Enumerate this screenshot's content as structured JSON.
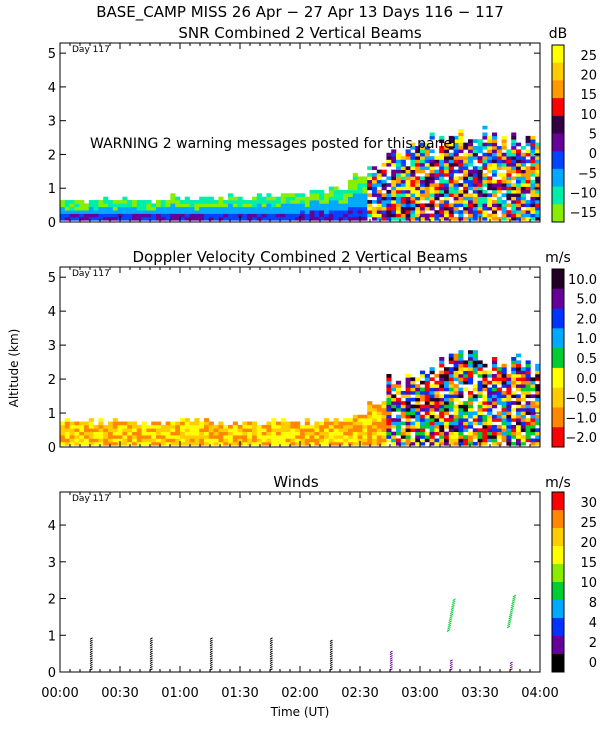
{
  "header": {
    "title": "BASE_CAMP MISS  26 Apr − 27 Apr 13 Days 116 − 117"
  },
  "warning_text": "WARNING  2 warning messages posted for this panel",
  "x_axis": {
    "label": "Time (UT)",
    "ticks": [
      "00:00",
      "00:30",
      "01:00",
      "01:30",
      "02:00",
      "02:30",
      "03:00",
      "03:30",
      "04:00"
    ],
    "range_hours": [
      0,
      4
    ]
  },
  "y_axis": {
    "label": "Altitude (km)"
  },
  "chart_data": [
    {
      "type": "heatmap",
      "title": "SNR Combined 2 Vertical Beams",
      "day_label": "Day 117",
      "units": "dB",
      "ylim": [
        0,
        5.3
      ],
      "y_ticks": [
        "0",
        "1",
        "2",
        "3",
        "4",
        "5"
      ],
      "y_tick_values": [
        0,
        1,
        2,
        3,
        4,
        5
      ],
      "colorbar_labels": [
        "25",
        "20",
        "15",
        "10",
        "5",
        "0",
        "−5",
        "−10",
        "−15"
      ],
      "colorbar_colors": [
        "#ffff00",
        "#ffcc00",
        "#ff9900",
        "#ff0000",
        "#330044",
        "#660099",
        "#0044ff",
        "#00aaff",
        "#00eeaa",
        "#88ee00"
      ],
      "echo_top_km": [
        0.6,
        0.6,
        0.65,
        0.65,
        0.6,
        0.7,
        0.7,
        0.65,
        0.7,
        0.7,
        0.75,
        0.8,
        0.8,
        0.85,
        0.95,
        1.3,
        1.8,
        2.0,
        2.2,
        2.4,
        2.6,
        2.7,
        2.6,
        2.5,
        2.4
      ]
    },
    {
      "type": "heatmap",
      "title": "Doppler Velocity Combined 2 Vertical Beams",
      "day_label": "Day 117",
      "units": "m/s",
      "ylim": [
        0,
        5.3
      ],
      "y_ticks": [
        "0",
        "1",
        "2",
        "3",
        "4",
        "5"
      ],
      "y_tick_values": [
        0,
        1,
        2,
        3,
        4,
        5
      ],
      "colorbar_labels": [
        "10.0",
        "5.0",
        "2.0",
        "1.0",
        "0.5",
        "0.0",
        "−0.5",
        "−1.0",
        "−2.0"
      ],
      "colorbar_colors": [
        "#220022",
        "#660099",
        "#0033ff",
        "#00aaff",
        "#00cc33",
        "#ffff00",
        "#ffcc00",
        "#ff8800",
        "#ff0000"
      ],
      "echo_top_km": [
        0.7,
        0.7,
        0.75,
        0.7,
        0.65,
        0.7,
        0.7,
        0.75,
        0.7,
        0.7,
        0.7,
        0.75,
        0.7,
        0.7,
        0.75,
        0.9,
        1.4,
        1.9,
        2.2,
        2.4,
        2.6,
        2.7,
        2.6,
        2.5,
        2.3
      ]
    },
    {
      "type": "scatter",
      "title": "Winds",
      "day_label": "Day 117",
      "units": "m/s",
      "ylim": [
        0,
        4.9
      ],
      "y_ticks": [
        "0",
        "1",
        "2",
        "3",
        "4"
      ],
      "y_tick_values": [
        0,
        1,
        2,
        3,
        4
      ],
      "colorbar_labels": [
        "30",
        "25",
        "20",
        "15",
        "10",
        "8",
        "4",
        "2",
        "0"
      ],
      "colorbar_colors": [
        "#ff0000",
        "#ff8800",
        "#ffcc00",
        "#ffff00",
        "#88ee00",
        "#00cc33",
        "#00aaff",
        "#0033ff",
        "#660099",
        "#000000"
      ],
      "profile_times_h": [
        0.25,
        0.75,
        1.25,
        1.75,
        2.25,
        2.75,
        3.25,
        3.75
      ],
      "profile_top_km": [
        0.95,
        0.95,
        0.95,
        0.9,
        0.85,
        0.55,
        0.3,
        0.25
      ],
      "upper_barb_times_h": [
        3.25,
        3.75
      ],
      "upper_barb_top_km": [
        2.0,
        2.05
      ],
      "upper_barb_bottom_km": [
        1.1,
        1.2
      ]
    }
  ]
}
